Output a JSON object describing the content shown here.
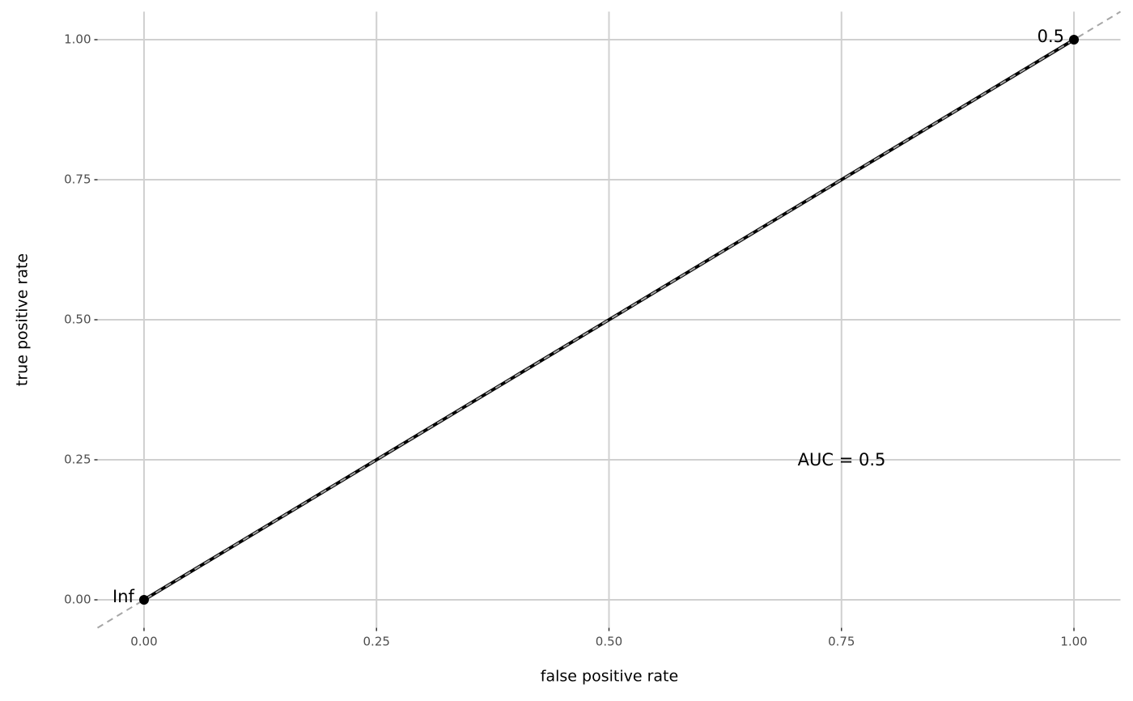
{
  "chart_data": {
    "type": "line",
    "xlabel": "false positive rate",
    "ylabel": "true positive rate",
    "x": [
      0,
      1
    ],
    "series": [
      {
        "values": [
          0,
          1
        ],
        "color": "#000000",
        "point_labels": [
          "Inf",
          "0.5"
        ]
      }
    ],
    "annotation": "AUC = 0.5",
    "reference_line": true,
    "xlim": [
      -0.05,
      1.05
    ],
    "ylim": [
      -0.05,
      1.05
    ],
    "xticks": [
      {
        "value": 0,
        "label": "0.00"
      },
      {
        "value": 0.25,
        "label": "0.25"
      },
      {
        "value": 0.5,
        "label": "0.50"
      },
      {
        "value": 0.75,
        "label": "0.75"
      },
      {
        "value": 1,
        "label": "1.00"
      }
    ],
    "yticks": [
      {
        "value": 0,
        "label": "0.00"
      },
      {
        "value": 0.25,
        "label": "0.25"
      },
      {
        "value": 0.5,
        "label": "0.50"
      },
      {
        "value": 0.75,
        "label": "0.75"
      },
      {
        "value": 1,
        "label": "1.00"
      }
    ],
    "grid": true
  }
}
